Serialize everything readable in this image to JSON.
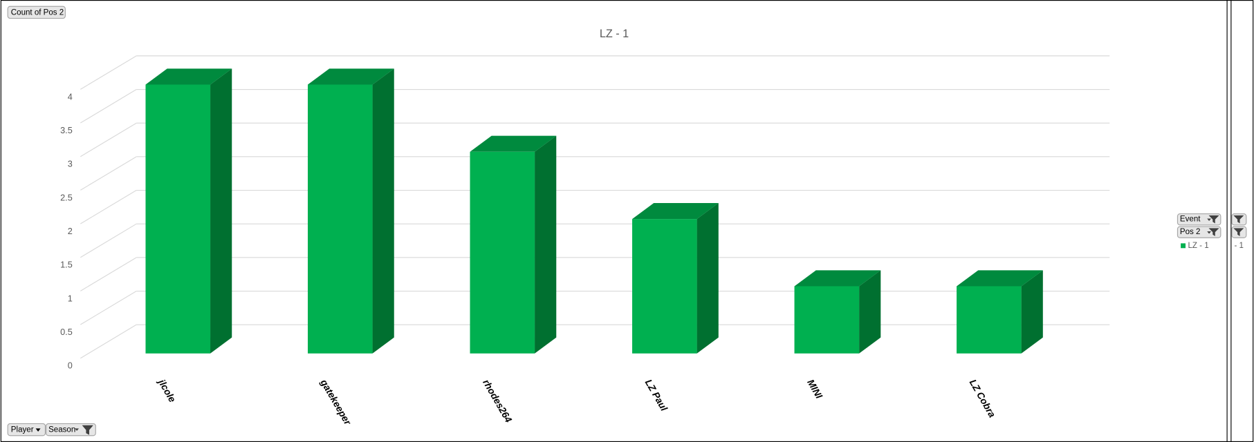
{
  "chart_data": {
    "type": "bar3d",
    "title": "LZ - 1",
    "categories": [
      "jlcole",
      "gatekeeper",
      "rhodes264",
      "LZ Paul",
      "MINI",
      "LZ Cobra"
    ],
    "series": [
      {
        "name": "LZ - 1",
        "color": "#00b050",
        "side_color": "#007030",
        "top_color": "#008a3e",
        "values": [
          4,
          4,
          3,
          2,
          1,
          1
        ]
      }
    ],
    "ylim": [
      0,
      4
    ],
    "yticks": [
      0,
      0.5,
      1,
      1.5,
      2,
      2.5,
      3,
      3.5,
      4
    ],
    "grid": true,
    "legend": "right"
  },
  "ui": {
    "value_button": "Count of Pos 2",
    "axis_buttons": [
      "Player",
      "Season"
    ],
    "legend_buttons": [
      "Event",
      "Pos 2"
    ],
    "clipped_text": "- 1"
  }
}
